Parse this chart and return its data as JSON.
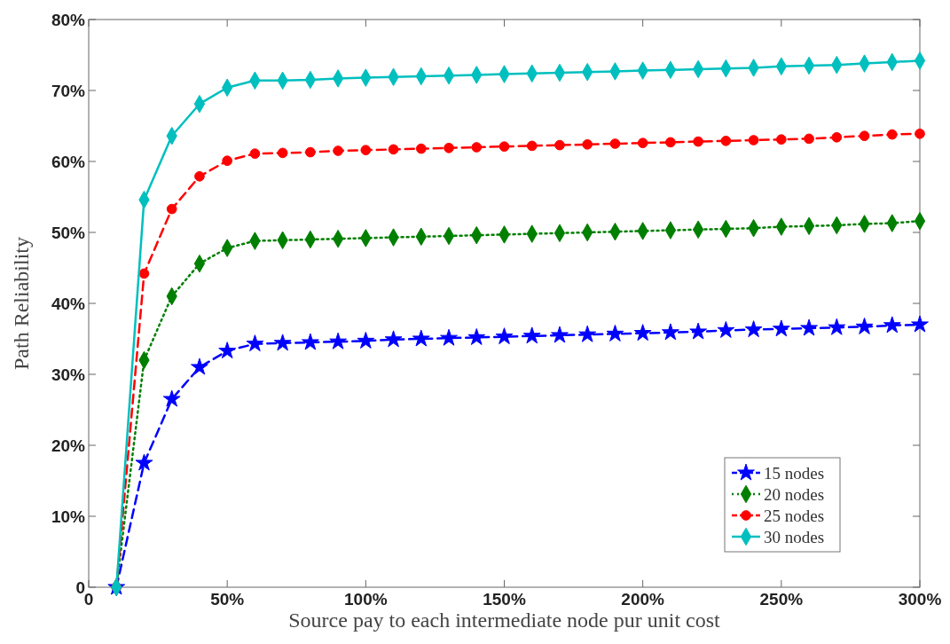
{
  "chart_data": {
    "type": "line",
    "xlabel": "Source pay to each intermediate node pur unit cost",
    "ylabel": "Path Reliability",
    "x": [
      10,
      20,
      30,
      40,
      50,
      60,
      70,
      80,
      90,
      100,
      110,
      120,
      130,
      140,
      150,
      160,
      170,
      180,
      190,
      200,
      210,
      220,
      230,
      240,
      250,
      260,
      270,
      280,
      290,
      300
    ],
    "series": [
      {
        "name": "15 nodes",
        "color": "#0000ff",
        "marker": "star",
        "line_style": "dashed",
        "values": [
          0,
          17.5,
          26.5,
          31,
          33.3,
          34.3,
          34.4,
          34.5,
          34.6,
          34.7,
          34.9,
          35.0,
          35.1,
          35.2,
          35.3,
          35.4,
          35.5,
          35.6,
          35.7,
          35.8,
          35.9,
          36.0,
          36.2,
          36.3,
          36.4,
          36.5,
          36.6,
          36.7,
          36.9,
          37.0
        ]
      },
      {
        "name": "20 nodes",
        "color": "#007f00",
        "marker": "diamond",
        "line_style": "dotted",
        "values": [
          0,
          32,
          41,
          45.6,
          47.8,
          48.8,
          48.9,
          49.0,
          49.1,
          49.2,
          49.3,
          49.4,
          49.5,
          49.6,
          49.7,
          49.8,
          49.9,
          50.0,
          50.1,
          50.2,
          50.3,
          50.4,
          50.5,
          50.6,
          50.8,
          50.9,
          51.0,
          51.2,
          51.3,
          51.6
        ]
      },
      {
        "name": "25 nodes",
        "color": "#ff0000",
        "marker": "circle",
        "line_style": "dashed",
        "values": [
          0,
          44.2,
          53.3,
          57.9,
          60.1,
          61.1,
          61.2,
          61.3,
          61.5,
          61.6,
          61.7,
          61.8,
          61.9,
          62.0,
          62.1,
          62.2,
          62.3,
          62.4,
          62.5,
          62.6,
          62.7,
          62.8,
          62.9,
          63.0,
          63.1,
          63.2,
          63.4,
          63.6,
          63.8,
          63.9
        ]
      },
      {
        "name": "30 nodes",
        "color": "#00bfbf",
        "marker": "diamond",
        "line_style": "solid",
        "values": [
          0,
          54.6,
          63.6,
          68.1,
          70.4,
          71.4,
          71.4,
          71.5,
          71.7,
          71.8,
          71.9,
          72.0,
          72.1,
          72.2,
          72.3,
          72.4,
          72.5,
          72.6,
          72.7,
          72.8,
          72.9,
          73.0,
          73.1,
          73.2,
          73.4,
          73.5,
          73.6,
          73.8,
          74.0,
          74.2
        ]
      }
    ],
    "xlim": [
      0,
      300
    ],
    "xticks": [
      {
        "value": 0,
        "label": "0"
      },
      {
        "value": 50,
        "label": "50%"
      },
      {
        "value": 100,
        "label": "100%"
      },
      {
        "value": 150,
        "label": "150%"
      },
      {
        "value": 200,
        "label": "200%"
      },
      {
        "value": 250,
        "label": "250%"
      },
      {
        "value": 300,
        "label": "300%"
      }
    ],
    "ylim": [
      0,
      80
    ],
    "yticks": [
      {
        "value": 0,
        "label": "0"
      },
      {
        "value": 10,
        "label": "10%"
      },
      {
        "value": 20,
        "label": "20%"
      },
      {
        "value": 30,
        "label": "30%"
      },
      {
        "value": 40,
        "label": "40%"
      },
      {
        "value": 50,
        "label": "50%"
      },
      {
        "value": 60,
        "label": "60%"
      },
      {
        "value": 70,
        "label": "70%"
      },
      {
        "value": 80,
        "label": "80%"
      }
    ],
    "grid": false,
    "legend": "bottom right"
  }
}
